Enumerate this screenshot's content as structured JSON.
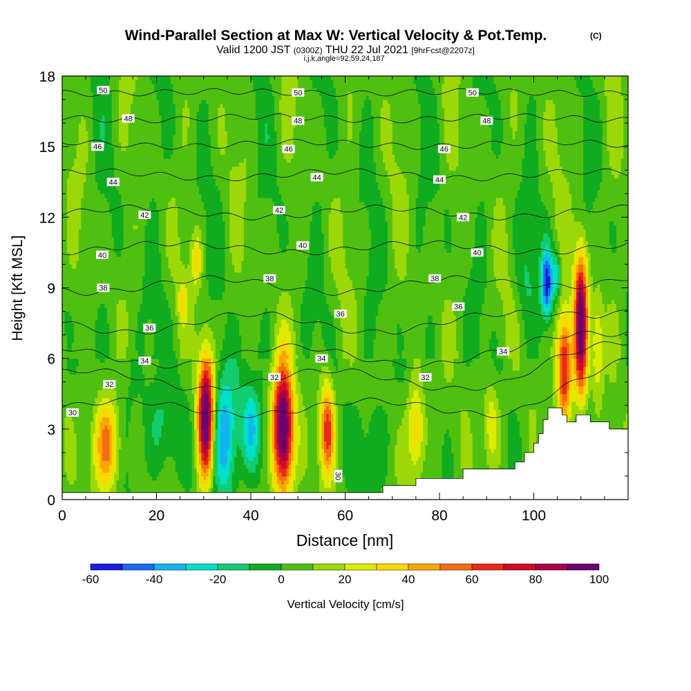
{
  "chart_data": {
    "type": "heatmap",
    "title": "Wind-Parallel Section at Max W: Vertical Velocity & Pot.Temp.",
    "title_mark": "(C)",
    "subtitle": {
      "main": "Valid 1200 JST",
      "utc": "(0300Z)",
      "date": "THU 22 Jul 2021",
      "forecast": "[9hrFcst@2207z]"
    },
    "index_line": "i,j,k,angle=92,59,24,187",
    "xlabel": "Distance [nm]",
    "ylabel": "Height [Kft MSL]",
    "xlim": [
      0,
      120
    ],
    "ylim": [
      0,
      18
    ],
    "xticks": [
      "0",
      "20",
      "40",
      "60",
      "80",
      "100"
    ],
    "yticks": [
      "0",
      "3",
      "6",
      "9",
      "12",
      "15",
      "18"
    ],
    "colorbar": {
      "label": "Vertical Velocity [cm/s]",
      "tick_labels": [
        "-60",
        "-40",
        "-20",
        "0",
        "20",
        "40",
        "60",
        "80",
        "100"
      ],
      "levels": [
        -60,
        -50,
        -40,
        -30,
        -20,
        -10,
        0,
        10,
        20,
        30,
        40,
        50,
        60,
        70,
        80,
        90,
        100
      ],
      "colors": [
        "#1a1ae0",
        "#1a6cf0",
        "#14b4f0",
        "#00e0c8",
        "#14cc70",
        "#10ac20",
        "#50c010",
        "#9cd808",
        "#dcec00",
        "#fcd800",
        "#f8a800",
        "#f46c10",
        "#ea2a14",
        "#d20a28",
        "#a8004a",
        "#6c006c"
      ]
    },
    "velocity_cells": [
      {
        "x": 9.5,
        "z": 2.4,
        "sx": 2.0,
        "sz": 1.4,
        "w": 55
      },
      {
        "x": 30.5,
        "z": 3.5,
        "sx": 1.2,
        "sz": 1.9,
        "w": 105
      },
      {
        "x": 34.5,
        "z": 2.8,
        "sx": 2.0,
        "sz": 2.0,
        "w": -45
      },
      {
        "x": 40.0,
        "z": 3.0,
        "sx": 1.5,
        "sz": 1.3,
        "w": -30
      },
      {
        "x": 46.8,
        "z": 3.0,
        "sx": 1.5,
        "sz": 1.9,
        "w": 110
      },
      {
        "x": 56.2,
        "z": 3.0,
        "sx": 1.1,
        "sz": 1.4,
        "w": 65
      },
      {
        "x": 75.0,
        "z": 3.0,
        "sx": 1.3,
        "sz": 1.4,
        "w": 38
      },
      {
        "x": 91.0,
        "z": 3.3,
        "sx": 1.2,
        "sz": 1.2,
        "w": 25
      },
      {
        "x": 106.5,
        "z": 5.6,
        "sx": 1.1,
        "sz": 1.6,
        "w": 75
      },
      {
        "x": 110.0,
        "z": 7.5,
        "sx": 1.0,
        "sz": 2.1,
        "w": 105
      },
      {
        "x": 102.8,
        "z": 9.2,
        "sx": 0.8,
        "sz": 1.0,
        "w": -60
      },
      {
        "x": 104.8,
        "z": 9.5,
        "sx": 0.6,
        "sz": 0.7,
        "w": -35
      },
      {
        "x": 113.5,
        "z": 6.5,
        "sx": 0.8,
        "sz": 1.4,
        "w": 30
      },
      {
        "x": 28.5,
        "z": 10.2,
        "sx": 0.8,
        "sz": 0.8,
        "w": 28
      },
      {
        "x": 25.5,
        "z": 8.4,
        "sx": 0.6,
        "sz": 0.6,
        "w": 22
      },
      {
        "x": 21.5,
        "z": 3.0,
        "sx": 2.5,
        "sz": 1.5,
        "w": -15
      },
      {
        "x": 66.0,
        "z": 2.6,
        "sx": 2.5,
        "sz": 1.4,
        "w": -12
      },
      {
        "x": 14.0,
        "z": 3.6,
        "sx": 3.0,
        "sz": 2.0,
        "w": -10
      },
      {
        "x": 98.0,
        "z": 9.4,
        "sx": 1.5,
        "sz": 1.3,
        "w": -12
      }
    ],
    "terrain": [
      [
        0,
        0.3
      ],
      [
        68,
        0.3
      ],
      [
        68,
        0.6
      ],
      [
        75,
        0.6
      ],
      [
        75,
        0.9
      ],
      [
        85,
        0.9
      ],
      [
        85,
        1.3
      ],
      [
        96,
        1.3
      ],
      [
        96,
        1.6
      ],
      [
        98,
        1.6
      ],
      [
        98,
        2.0
      ],
      [
        100,
        2.0
      ],
      [
        100,
        2.4
      ],
      [
        101,
        2.4
      ],
      [
        101,
        2.8
      ],
      [
        102,
        2.8
      ],
      [
        102,
        3.4
      ],
      [
        103,
        3.4
      ],
      [
        103,
        3.9
      ],
      [
        106,
        3.9
      ],
      [
        106,
        3.6
      ],
      [
        107,
        3.6
      ],
      [
        107,
        3.3
      ],
      [
        109,
        3.3
      ],
      [
        109,
        3.6
      ],
      [
        112,
        3.6
      ],
      [
        112,
        3.3
      ],
      [
        116,
        3.3
      ],
      [
        116,
        3.0
      ],
      [
        120,
        3.0
      ]
    ],
    "theta_contours": [
      {
        "label": "30",
        "base": 3.9,
        "amp": 0.3,
        "labels": [
          [
            2.2,
            3.7
          ]
        ]
      },
      {
        "label": "32",
        "base": 5.1,
        "amp": 0.4,
        "labels": [
          [
            10,
            4.9
          ],
          [
            45,
            5.2
          ],
          [
            77,
            5.2
          ]
        ]
      },
      {
        "label": "34",
        "base": 6.1,
        "amp": 0.4,
        "labels": [
          [
            17.5,
            5.9
          ],
          [
            55,
            6.0
          ],
          [
            93.5,
            6.3
          ]
        ]
      },
      {
        "label": "36",
        "base": 7.5,
        "amp": 0.4,
        "labels": [
          [
            18.5,
            7.3
          ],
          [
            59,
            7.9
          ],
          [
            84,
            8.2
          ]
        ]
      },
      {
        "label": "38",
        "base": 9.1,
        "amp": 0.3,
        "labels": [
          [
            8.7,
            9.0
          ],
          [
            44,
            9.4
          ],
          [
            79,
            9.4
          ]
        ]
      },
      {
        "label": "40",
        "base": 10.7,
        "amp": 0.2,
        "labels": [
          [
            8.5,
            10.4
          ],
          [
            51,
            10.8
          ],
          [
            88,
            10.5
          ]
        ]
      },
      {
        "label": "42",
        "base": 12.2,
        "amp": 0.2,
        "labels": [
          [
            17.5,
            12.1
          ],
          [
            46,
            12.3
          ],
          [
            85,
            12.0
          ]
        ]
      },
      {
        "label": "44",
        "base": 13.8,
        "amp": 0.15,
        "labels": [
          [
            10.8,
            13.5
          ],
          [
            54,
            13.7
          ],
          [
            80,
            13.6
          ]
        ]
      },
      {
        "label": "46",
        "base": 15.1,
        "amp": 0.1,
        "labels": [
          [
            7.5,
            15.0
          ],
          [
            48,
            14.9
          ],
          [
            81,
            14.9
          ]
        ]
      },
      {
        "label": "48",
        "base": 16.2,
        "amp": 0.08,
        "labels": [
          [
            14,
            16.2
          ],
          [
            50,
            16.1
          ],
          [
            90,
            16.1
          ]
        ]
      },
      {
        "label": "50",
        "base": 17.3,
        "amp": 0.05,
        "labels": [
          [
            8.7,
            17.4
          ],
          [
            50,
            17.3
          ],
          [
            87,
            17.3
          ]
        ]
      }
    ],
    "extra_contour_label": {
      "text": "30",
      "x": 58.5,
      "z": 1.0
    }
  }
}
